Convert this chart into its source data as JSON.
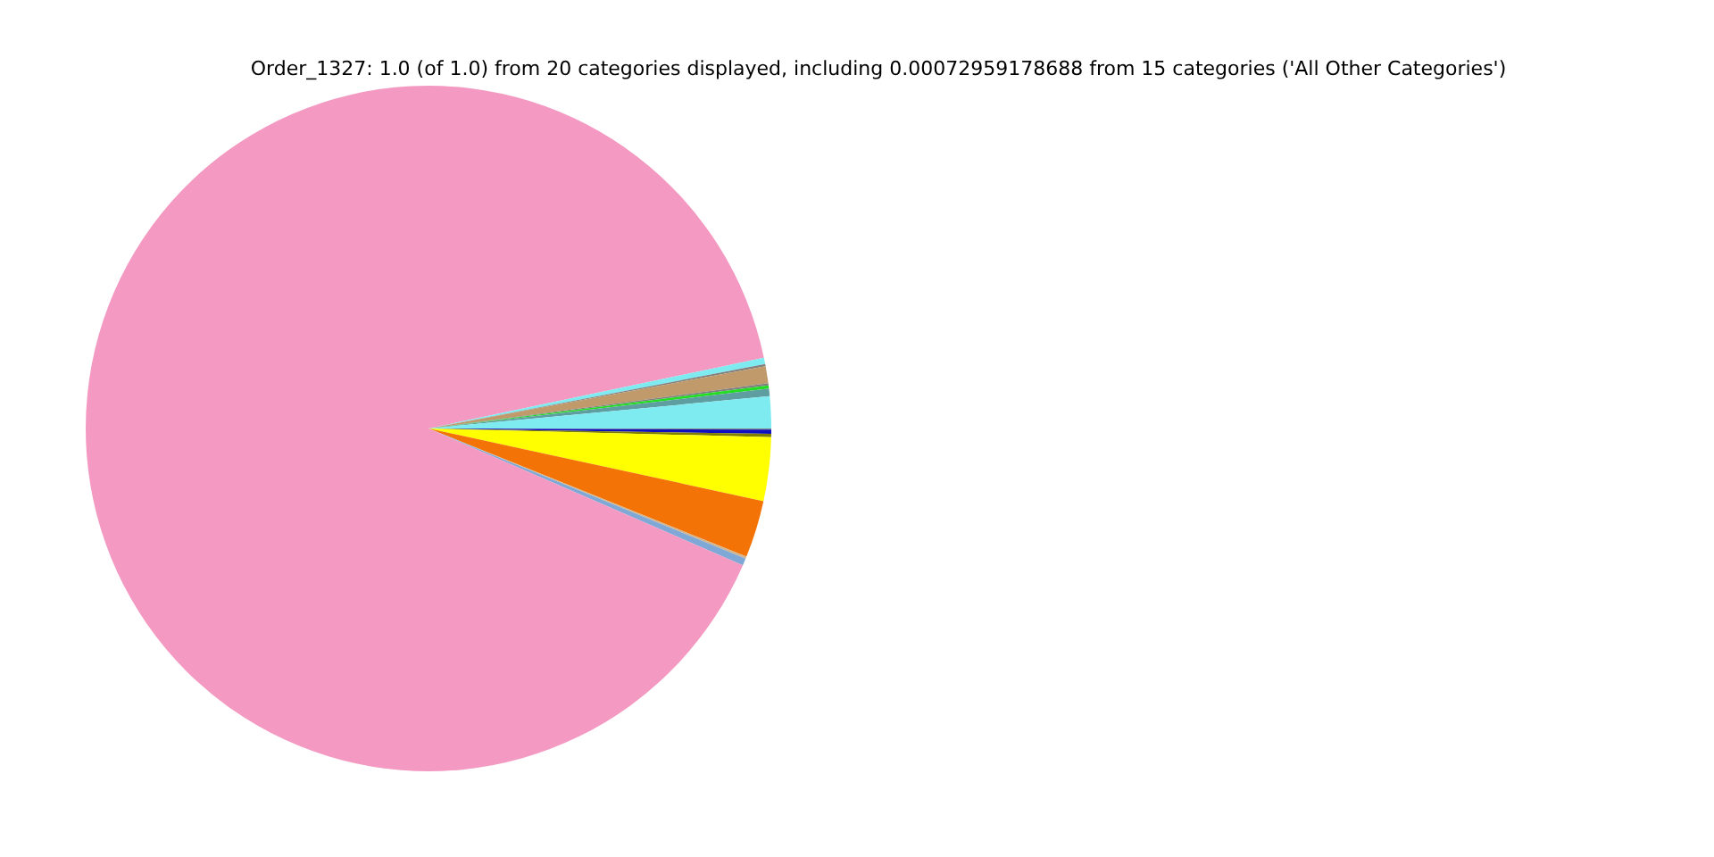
{
  "chart_data": {
    "type": "pie",
    "title": "Order_1327: 1.0 (of 1.0) from 20 categories displayed, including 0.00072959178688 from 15 categories ('All Other Categories')",
    "categories": [
      null,
      null,
      null,
      null,
      null,
      null,
      null,
      null,
      null,
      null,
      null,
      null,
      null,
      null,
      null
    ],
    "values": [
      0.05,
      0.2,
      0.15,
      3.0,
      2.7,
      0.1,
      0.33,
      90.16,
      0.3,
      0.1,
      0.8,
      0.1,
      0.15,
      0.36,
      1.5
    ],
    "colors": [
      "#808080",
      "#1010c0",
      "#808000",
      "#ffff00",
      "#f47306",
      "#d2b48c",
      "#7fa8d6",
      "#f49ac2",
      "#7debf0",
      "#808080",
      "#c09a6b",
      "#808080",
      "#22dd22",
      "#5f9ea0",
      "#7debf0"
    ]
  }
}
